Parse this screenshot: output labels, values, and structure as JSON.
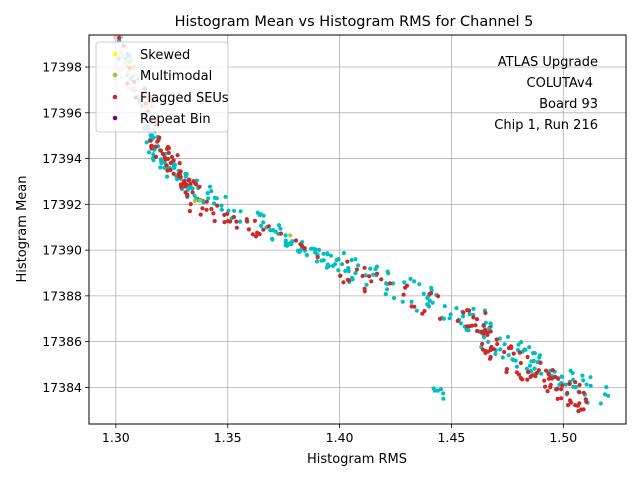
{
  "chart_data": {
    "type": "scatter",
    "title": "Histogram Mean vs Histogram RMS for Channel 5",
    "xlabel": "Histogram RMS",
    "ylabel": "Histogram Mean",
    "xlim": [
      1.288,
      1.528
    ],
    "ylim": [
      17382.4,
      17399.4
    ],
    "xticks": [
      1.3,
      1.35,
      1.4,
      1.45,
      1.5
    ],
    "xtick_labels": [
      "1.30",
      "1.35",
      "1.40",
      "1.45",
      "1.50"
    ],
    "yticks": [
      17384,
      17386,
      17388,
      17390,
      17392,
      17394,
      17396,
      17398
    ],
    "ytick_labels": [
      "17384",
      "17386",
      "17388",
      "17390",
      "17392",
      "17394",
      "17396",
      "17398"
    ],
    "grid": true,
    "legend_position": "upper-left",
    "annotation": [
      "ATLAS Upgrade",
      "COLUTAv4",
      "Board 93",
      "Chip 1, Run 216"
    ],
    "colors": {
      "Normal": "#00bfbf",
      "Skewed": "#ffff00",
      "Multimodal": "#9acd32",
      "Flagged SEUs": "#cc2a2a",
      "Repeat Bin": "#800080",
      "faint": "#f2c4c4"
    },
    "legend": [
      {
        "name": "Skewed",
        "color": "#ffff00"
      },
      {
        "name": "Multimodal",
        "color": "#9acd32"
      },
      {
        "name": "Flagged SEUs",
        "color": "#cc2a2a"
      },
      {
        "name": "Repeat Bin",
        "color": "#800080"
      }
    ],
    "clusters": [
      {
        "series": "Normal",
        "n": 40,
        "x": [
          1.302,
          1.318
        ],
        "y": [
          17394.6,
          17398.8
        ]
      },
      {
        "series": "faint",
        "n": 60,
        "x": [
          1.3,
          1.318
        ],
        "y": [
          17395.5,
          17399.0
        ]
      },
      {
        "series": "Flagged SEUs",
        "n": 14,
        "x": [
          1.303,
          1.318
        ],
        "y": [
          17395.4,
          17398.6
        ]
      },
      {
        "series": "Normal",
        "n": 45,
        "x": [
          1.316,
          1.336
        ],
        "y": [
          17392.4,
          17394.6
        ]
      },
      {
        "series": "Flagged SEUs",
        "n": 55,
        "x": [
          1.316,
          1.336
        ],
        "y": [
          17392.4,
          17394.8
        ]
      },
      {
        "series": "Normal",
        "n": 35,
        "x": [
          1.335,
          1.375
        ],
        "y": [
          17390.5,
          17392.8
        ]
      },
      {
        "series": "Flagged SEUs",
        "n": 28,
        "x": [
          1.335,
          1.375
        ],
        "y": [
          17390.5,
          17392.0
        ]
      },
      {
        "series": "Normal",
        "n": 40,
        "x": [
          1.375,
          1.4
        ],
        "y": [
          17389.3,
          17390.5
        ]
      },
      {
        "series": "Flagged SEUs",
        "n": 6,
        "x": [
          1.372,
          1.392
        ],
        "y": [
          17389.6,
          17390.7
        ]
      },
      {
        "series": "Normal",
        "n": 70,
        "x": [
          1.4,
          1.47
        ],
        "y": [
          17386.6,
          17389.4
        ]
      },
      {
        "series": "Flagged SEUs",
        "n": 40,
        "x": [
          1.4,
          1.47
        ],
        "y": [
          17386.6,
          17389.2
        ]
      },
      {
        "series": "Normal",
        "n": 70,
        "x": [
          1.465,
          1.52
        ],
        "y": [
          17383.3,
          17386.2
        ]
      },
      {
        "series": "Flagged SEUs",
        "n": 80,
        "x": [
          1.46,
          1.51
        ],
        "y": [
          17383.4,
          17386.2
        ]
      },
      {
        "series": "Normal",
        "n": 6,
        "x": [
          1.443,
          1.448
        ],
        "y": [
          17383.4,
          17384.0
        ]
      },
      {
        "series": "Multimodal",
        "n": 2,
        "x": [
          1.335,
          1.34
        ],
        "y": [
          17392.0,
          17392.3
        ]
      },
      {
        "series": "Multimodal",
        "n": 1,
        "x": [
          1.378,
          1.38
        ],
        "y": [
          17390.6,
          17390.7
        ]
      },
      {
        "series": "Multimodal",
        "n": 2,
        "x": [
          1.306,
          1.309
        ],
        "y": [
          17397.8,
          17398.4
        ]
      }
    ]
  }
}
